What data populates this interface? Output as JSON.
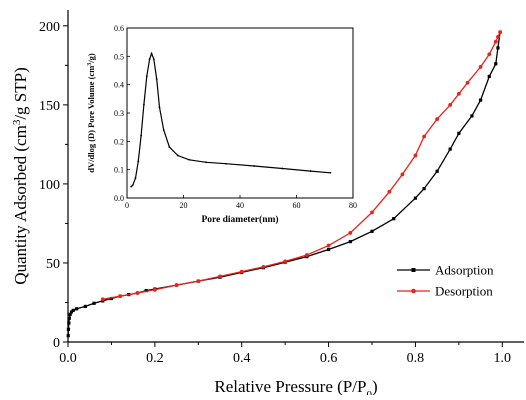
{
  "colors": {
    "adsorption": "#000000",
    "desorption": "#e8231d",
    "axis": "#000000"
  },
  "chart_data": [
    {
      "type": "line",
      "xlabel_parts": {
        "main": "Relative Pressure (P/P",
        "sub": "0",
        "end": ")"
      },
      "ylabel_parts": {
        "main": "Quantity Adsorbed (cm",
        "sup": "3",
        "end": "/g STP)"
      },
      "xlim": [
        0.0,
        1.05
      ],
      "ylim": [
        0,
        210
      ],
      "xticks": [
        0.0,
        0.2,
        0.4,
        0.6,
        0.8,
        1.0
      ],
      "xtick_labels": [
        "0.0",
        "0.2",
        "0.4",
        "0.6",
        "0.8",
        "1.0"
      ],
      "yticks": [
        0,
        50,
        100,
        150,
        200
      ],
      "ytick_labels": [
        "0",
        "50",
        "100",
        "150",
        "200"
      ],
      "grid": false,
      "legend_position": "right",
      "series": [
        {
          "name": "Adsorption",
          "color": "#000000",
          "marker": "square",
          "x": [
            0.0005,
            0.001,
            0.002,
            0.003,
            0.005,
            0.008,
            0.012,
            0.02,
            0.04,
            0.06,
            0.08,
            0.1,
            0.12,
            0.14,
            0.16,
            0.18,
            0.2,
            0.25,
            0.3,
            0.35,
            0.4,
            0.45,
            0.5,
            0.55,
            0.6,
            0.65,
            0.7,
            0.75,
            0.8,
            0.82,
            0.85,
            0.88,
            0.9,
            0.93,
            0.95,
            0.97,
            0.985,
            0.99,
            0.995
          ],
          "y": [
            4,
            8,
            12,
            15,
            17.5,
            19,
            20,
            21,
            22.5,
            24.5,
            26,
            27.5,
            29,
            30,
            31,
            32.5,
            33.5,
            36,
            38.5,
            41,
            44,
            47,
            50.5,
            54,
            58.5,
            63.5,
            70,
            78,
            91,
            97,
            108,
            122,
            132,
            143,
            153,
            168,
            176,
            186,
            196
          ]
        },
        {
          "name": "Desorption",
          "color": "#e8231d",
          "marker": "circle",
          "x": [
            0.995,
            0.99,
            0.985,
            0.97,
            0.95,
            0.92,
            0.9,
            0.88,
            0.85,
            0.82,
            0.8,
            0.77,
            0.74,
            0.7,
            0.65,
            0.6,
            0.55,
            0.5,
            0.45,
            0.4,
            0.35,
            0.3,
            0.25,
            0.2,
            0.16,
            0.12,
            0.08
          ],
          "y": [
            196,
            193,
            190,
            182,
            174,
            164,
            157,
            150,
            141,
            130,
            118,
            106,
            95,
            82,
            69,
            61,
            55,
            51,
            47.5,
            44.5,
            41.5,
            38.5,
            36,
            33,
            31,
            29,
            27
          ]
        }
      ]
    },
    {
      "type": "line",
      "xlabel": "Pore diameter(nm)",
      "ylabel_parts": {
        "main": "dV/dlog (D) Pore Volume (cm",
        "sup": "3",
        "end": "/g)"
      },
      "xlim": [
        0,
        80
      ],
      "ylim": [
        0,
        0.6
      ],
      "xticks": [
        0,
        20,
        40,
        60,
        80
      ],
      "xtick_labels": [
        "0",
        "20",
        "40",
        "60",
        "80"
      ],
      "yticks": [
        0.0,
        0.1,
        0.2,
        0.3,
        0.4,
        0.5,
        0.6
      ],
      "ytick_labels": [
        "0.0",
        "0.1",
        "0.2",
        "0.3",
        "0.4",
        "0.5",
        "0.6"
      ],
      "grid": false,
      "series": [
        {
          "color": "#000000",
          "x": [
            1.5,
            2,
            3,
            4,
            5,
            6,
            7,
            8,
            8.7,
            9.5,
            10.5,
            11.5,
            13,
            15,
            18,
            22,
            28,
            35,
            45,
            55,
            65,
            72
          ],
          "y": [
            0.04,
            0.045,
            0.07,
            0.13,
            0.22,
            0.33,
            0.43,
            0.49,
            0.51,
            0.49,
            0.42,
            0.32,
            0.24,
            0.18,
            0.15,
            0.135,
            0.126,
            0.121,
            0.113,
            0.104,
            0.095,
            0.089
          ]
        }
      ]
    }
  ]
}
